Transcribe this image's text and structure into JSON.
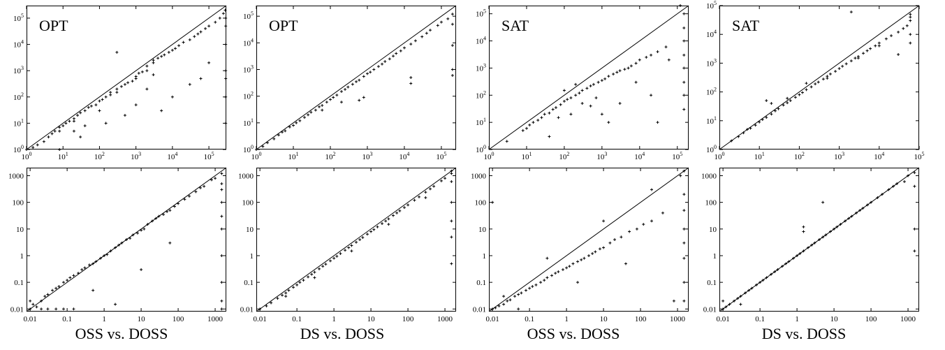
{
  "chart_data": [
    {
      "type": "scatter",
      "row": 1,
      "col": 1,
      "label": "OPT",
      "log_x": true,
      "log_y": true,
      "xlim": [
        1,
        300000
      ],
      "ylim": [
        1,
        300000
      ],
      "diagonal": true,
      "x_ticks": [
        "10^0",
        "10^1",
        "10^2",
        "10^3",
        "10^4",
        "10^5"
      ],
      "y_ticks": [
        "10^0",
        "10^1",
        "10^2",
        "10^3",
        "10^4",
        "10^5"
      ],
      "x": [
        1,
        1.5,
        2,
        3,
        4,
        5,
        6,
        8,
        8,
        10,
        12,
        15,
        20,
        20,
        25,
        30,
        40,
        50,
        60,
        80,
        100,
        120,
        150,
        200,
        200,
        300,
        300,
        400,
        500,
        600,
        800,
        1000,
        1000,
        1200,
        1500,
        2000,
        2000,
        3000,
        3000,
        4000,
        5000,
        6000,
        8000,
        10000,
        12000,
        15000,
        20000,
        30000,
        40000,
        50000,
        60000,
        80000,
        100000,
        150000,
        200000,
        250000,
        280000,
        290000,
        290000,
        290000,
        290000,
        290000,
        290000,
        290000,
        20,
        40,
        100,
        300,
        1000,
        2000,
        5000,
        10000,
        30000,
        60000,
        100000,
        8,
        30,
        150,
        500,
        3000
      ],
      "y": [
        1,
        1.2,
        1.5,
        2,
        3,
        4,
        5,
        5,
        7,
        8,
        10,
        12,
        15,
        12,
        20,
        25,
        30,
        40,
        45,
        50,
        70,
        80,
        100,
        120,
        150,
        150,
        200,
        250,
        300,
        350,
        400,
        500,
        600,
        800,
        900,
        1000,
        1500,
        2000,
        2500,
        3000,
        3500,
        4000,
        5000,
        6000,
        7000,
        9000,
        12000,
        15000,
        20000,
        25000,
        30000,
        40000,
        50000,
        70000,
        100000,
        150000,
        200000,
        100000,
        10000,
        1000,
        100,
        10,
        50000,
        500,
        5,
        8,
        30,
        5000,
        50,
        200,
        30,
        100,
        300,
        500,
        2000,
        1,
        3,
        10,
        20,
        700
      ]
    },
    {
      "type": "scatter",
      "row": 1,
      "col": 2,
      "label": "OPT",
      "log_x": true,
      "log_y": true,
      "xlim": [
        1,
        250000
      ],
      "ylim": [
        1,
        250000
      ],
      "diagonal": true,
      "x_ticks": [
        "10^0",
        "10^1",
        "10^2",
        "10^3",
        "10^4",
        "10^5"
      ],
      "y_ticks": [
        "10^0",
        "10^1",
        "10^2",
        "10^3",
        "10^4",
        "10^5"
      ],
      "x": [
        1,
        1.5,
        2,
        3,
        4,
        5,
        6,
        8,
        10,
        12,
        15,
        20,
        25,
        30,
        40,
        50,
        60,
        80,
        100,
        120,
        150,
        200,
        250,
        300,
        400,
        500,
        600,
        800,
        1000,
        1200,
        1500,
        2000,
        2500,
        3000,
        4000,
        5000,
        6000,
        8000,
        10000,
        15000,
        20000,
        30000,
        40000,
        50000,
        80000,
        100000,
        150000,
        200000,
        200000,
        200000,
        200000,
        200000,
        15000,
        15000,
        600,
        800,
        60,
        200
      ],
      "y": [
        1,
        1.3,
        1.8,
        2.5,
        3.5,
        4.5,
        5,
        7,
        8,
        10,
        12,
        16,
        20,
        25,
        30,
        40,
        45,
        60,
        75,
        90,
        110,
        150,
        180,
        220,
        280,
        350,
        400,
        550,
        700,
        800,
        1000,
        1300,
        1600,
        2000,
        2500,
        3200,
        4000,
        5000,
        6500,
        9000,
        12000,
        17000,
        23000,
        30000,
        45000,
        60000,
        80000,
        120000,
        50000,
        8000,
        1000,
        600,
        300,
        500,
        70,
        90,
        30,
        60
      ]
    },
    {
      "type": "scatter",
      "row": 1,
      "col": 3,
      "label": "SAT",
      "log_x": true,
      "log_y": true,
      "xlim": [
        1,
        200000
      ],
      "ylim": [
        1,
        200000
      ],
      "diagonal": true,
      "x_ticks": [
        "10^0",
        "10^1",
        "10^2",
        "10^3",
        "10^4",
        "10^5"
      ],
      "y_ticks": [
        "10^0",
        "10^1",
        "10^2",
        "10^3",
        "10^4",
        "10^5"
      ],
      "x": [
        3,
        8,
        10,
        12,
        15,
        20,
        25,
        30,
        40,
        50,
        60,
        80,
        100,
        120,
        150,
        200,
        250,
        300,
        400,
        500,
        600,
        800,
        1000,
        1200,
        1500,
        2000,
        2500,
        3000,
        4000,
        5000,
        6000,
        8000,
        10000,
        15000,
        20000,
        30000,
        50000,
        150000,
        150000,
        150000,
        150000,
        150000,
        150000,
        150000,
        150000,
        40,
        70,
        150,
        300,
        700,
        1500,
        3000,
        8000,
        20000,
        100,
        200,
        500,
        1000,
        30000,
        60000,
        120000
      ],
      "y": [
        2,
        5,
        6,
        8,
        10,
        12,
        15,
        20,
        22,
        30,
        35,
        45,
        60,
        70,
        80,
        100,
        120,
        150,
        180,
        220,
        250,
        300,
        350,
        400,
        500,
        600,
        700,
        800,
        900,
        1000,
        1200,
        1500,
        2000,
        2500,
        3000,
        4000,
        6000,
        100000,
        30000,
        10000,
        3000,
        1000,
        300,
        100,
        30,
        3,
        15,
        20,
        50,
        80,
        10,
        50,
        300,
        100,
        150,
        250,
        40,
        20,
        10,
        2000,
        200000
      ]
    },
    {
      "type": "scatter",
      "row": 1,
      "col": 4,
      "label": "SAT",
      "log_x": true,
      "log_y": true,
      "xlim": [
        1,
        100000
      ],
      "ylim": [
        1,
        100000
      ],
      "diagonal": true,
      "x_ticks": [
        "10^0",
        "10^1",
        "10^2",
        "10^3",
        "10^4",
        "10^5"
      ],
      "y_ticks": [
        "10^0",
        "10^1",
        "10^2",
        "10^3",
        "10^4",
        "10^5"
      ],
      "x": [
        2,
        3,
        4,
        5,
        6,
        8,
        10,
        12,
        15,
        20,
        25,
        30,
        40,
        50,
        60,
        80,
        100,
        120,
        150,
        200,
        250,
        300,
        400,
        500,
        600,
        800,
        1000,
        1200,
        1500,
        2000,
        2500,
        3000,
        4000,
        5000,
        6000,
        8000,
        10000,
        15000,
        20000,
        30000,
        40000,
        50000,
        60000,
        60000,
        60000,
        60000,
        60000,
        2000,
        20,
        50,
        150,
        500,
        3000,
        10000,
        30000,
        15
      ],
      "y": [
        2,
        2.8,
        3.8,
        5,
        5.5,
        7,
        9,
        11,
        13,
        17,
        22,
        26,
        35,
        42,
        50,
        65,
        80,
        95,
        120,
        150,
        190,
        220,
        280,
        350,
        420,
        520,
        650,
        780,
        950,
        1200,
        1500,
        1700,
        2200,
        2700,
        3200,
        4000,
        5000,
        7000,
        9000,
        12000,
        16000,
        20000,
        40000,
        10000,
        5000,
        50000,
        30000,
        60000,
        40,
        60,
        200,
        300,
        1500,
        4000,
        2000,
        50
      ]
    },
    {
      "type": "scatter",
      "row": 2,
      "col": 1,
      "label": "",
      "log_x": true,
      "log_y": true,
      "xlim": [
        0.008,
        2000
      ],
      "ylim": [
        0.008,
        2000
      ],
      "diagonal": true,
      "x_ticks": [
        "0.01",
        "0.1",
        "1",
        "10",
        "100",
        "1000"
      ],
      "y_ticks": [
        "0.01",
        "0.1",
        "1",
        "10",
        "100",
        "1000"
      ],
      "x": [
        0.01,
        0.01,
        0.012,
        0.015,
        0.02,
        0.025,
        0.03,
        0.04,
        0.05,
        0.06,
        0.08,
        0.1,
        0.12,
        0.15,
        0.2,
        0.25,
        0.3,
        0.4,
        0.5,
        0.6,
        0.8,
        1,
        1.2,
        1.5,
        2,
        2.5,
        3,
        4,
        5,
        6,
        8,
        10,
        12,
        15,
        20,
        25,
        30,
        40,
        50,
        60,
        80,
        100,
        150,
        200,
        300,
        400,
        500,
        800,
        1000,
        1500,
        1500,
        1500,
        1500,
        1500,
        1500,
        1500,
        1500,
        1500,
        0.02,
        0.03,
        0.05,
        0.08,
        0.15,
        0.5,
        2,
        10,
        60,
        1500
      ],
      "y": [
        0.01,
        0.02,
        0.015,
        0.012,
        0.02,
        0.03,
        0.035,
        0.05,
        0.06,
        0.07,
        0.1,
        0.12,
        0.15,
        0.18,
        0.22,
        0.3,
        0.35,
        0.45,
        0.5,
        0.6,
        0.8,
        1,
        1.1,
        1.5,
        2,
        2.5,
        3,
        4,
        4.5,
        6,
        7,
        9,
        10,
        15,
        20,
        25,
        30,
        35,
        45,
        50,
        70,
        90,
        130,
        170,
        250,
        350,
        400,
        700,
        800,
        1200,
        500,
        100,
        10,
        1,
        0.1,
        0.02,
        300,
        30,
        0.01,
        0.01,
        0.01,
        0.01,
        0.01,
        0.05,
        0.015,
        0.3,
        3,
        0.01
      ]
    },
    {
      "type": "scatter",
      "row": 2,
      "col": 2,
      "label": "",
      "log_x": true,
      "log_y": true,
      "xlim": [
        0.008,
        2000
      ],
      "ylim": [
        0.008,
        2000
      ],
      "diagonal": true,
      "x_ticks": [
        "0.01",
        "0.1",
        "1",
        "10",
        "100",
        "1000"
      ],
      "y_ticks": [
        "0.01",
        "0.1",
        "1",
        "10",
        "100",
        "1000"
      ],
      "x": [
        0.01,
        0.015,
        0.02,
        0.03,
        0.04,
        0.05,
        0.06,
        0.08,
        0.1,
        0.12,
        0.15,
        0.2,
        0.25,
        0.3,
        0.4,
        0.5,
        0.6,
        0.8,
        1,
        1.2,
        1.5,
        2,
        2.5,
        3,
        4,
        5,
        6,
        8,
        10,
        12,
        15,
        20,
        25,
        30,
        40,
        50,
        60,
        80,
        100,
        150,
        200,
        300,
        400,
        500,
        800,
        1000,
        1500,
        1500,
        1500,
        1500,
        1500,
        1500,
        1500,
        0.05,
        0.3,
        3,
        30,
        300
      ],
      "y": [
        0.01,
        0.013,
        0.017,
        0.025,
        0.033,
        0.04,
        0.05,
        0.065,
        0.08,
        0.1,
        0.12,
        0.16,
        0.2,
        0.24,
        0.32,
        0.4,
        0.48,
        0.64,
        0.8,
        0.95,
        1.2,
        1.6,
        2,
        2.4,
        3.2,
        4,
        4.8,
        6.4,
        8,
        9.5,
        12,
        16,
        20,
        24,
        32,
        40,
        48,
        64,
        80,
        120,
        160,
        240,
        320,
        400,
        640,
        800,
        1200,
        600,
        100,
        20,
        5,
        0.5,
        1500,
        0.03,
        0.15,
        1.5,
        15,
        150
      ]
    },
    {
      "type": "scatter",
      "row": 2,
      "col": 3,
      "label": "",
      "log_x": true,
      "log_y": true,
      "xlim": [
        0.008,
        2000
      ],
      "ylim": [
        0.008,
        2000
      ],
      "diagonal": true,
      "x_ticks": [
        "0.01",
        "0.1",
        "1",
        "10",
        "100",
        "1000"
      ],
      "y_ticks": [
        "0.01",
        "0.1",
        "1",
        "10",
        "100",
        "1000"
      ],
      "x": [
        0.01,
        0.012,
        0.015,
        0.02,
        0.025,
        0.03,
        0.04,
        0.05,
        0.06,
        0.08,
        0.1,
        0.12,
        0.15,
        0.2,
        0.25,
        0.3,
        0.4,
        0.5,
        0.6,
        0.8,
        1,
        1.2,
        1.5,
        2,
        2.5,
        3,
        4,
        5,
        6,
        8,
        10,
        15,
        20,
        30,
        50,
        80,
        120,
        200,
        400,
        1500,
        1500,
        1500,
        1500,
        1500,
        1500,
        1500,
        1500,
        0.01,
        0.02,
        0.05,
        0.3,
        2,
        10,
        40,
        200,
        800,
        1200
      ],
      "y": [
        0.01,
        0.011,
        0.013,
        0.015,
        0.02,
        0.022,
        0.03,
        0.035,
        0.04,
        0.05,
        0.06,
        0.07,
        0.08,
        0.1,
        0.12,
        0.15,
        0.18,
        0.22,
        0.25,
        0.3,
        0.35,
        0.4,
        0.5,
        0.6,
        0.7,
        0.8,
        1,
        1.2,
        1.4,
        1.8,
        2,
        3,
        4,
        5,
        8,
        10,
        15,
        20,
        40,
        1500,
        200,
        50,
        10,
        3,
        0.8,
        0.1,
        0.02,
        100,
        0.03,
        0.01,
        0.8,
        0.1,
        20,
        0.5,
        300,
        0.02,
        1000
      ]
    },
    {
      "type": "scatter",
      "row": 2,
      "col": 4,
      "label": "",
      "log_x": true,
      "log_y": true,
      "xlim": [
        0.008,
        2000
      ],
      "ylim": [
        0.008,
        2000
      ],
      "diagonal": true,
      "x_ticks": [
        "0.01",
        "0.1",
        "1",
        "10",
        "100",
        "1000"
      ],
      "y_ticks": [
        "0.01",
        "0.1",
        "1",
        "10",
        "100",
        "1000"
      ],
      "x": [
        0.01,
        0.012,
        0.015,
        0.02,
        0.025,
        0.03,
        0.04,
        0.05,
        0.06,
        0.08,
        0.1,
        0.12,
        0.15,
        0.2,
        0.25,
        0.3,
        0.4,
        0.5,
        0.6,
        0.8,
        1,
        1.2,
        1.5,
        2,
        2.5,
        3,
        4,
        5,
        6,
        8,
        10,
        12,
        15,
        20,
        25,
        30,
        40,
        50,
        60,
        80,
        100,
        150,
        200,
        300,
        400,
        500,
        800,
        1000,
        1500,
        1500,
        1500,
        1500,
        1.5,
        1.5,
        5,
        0.01,
        0.03
      ],
      "y": [
        0.01,
        0.012,
        0.015,
        0.02,
        0.025,
        0.03,
        0.04,
        0.05,
        0.06,
        0.08,
        0.1,
        0.12,
        0.15,
        0.2,
        0.25,
        0.3,
        0.4,
        0.5,
        0.6,
        0.8,
        1,
        1.2,
        1.5,
        2,
        2.5,
        3,
        4,
        5,
        6,
        8,
        10,
        12,
        15,
        20,
        25,
        30,
        40,
        50,
        60,
        80,
        100,
        150,
        200,
        300,
        400,
        500,
        600,
        1000,
        1300,
        10,
        1.5,
        400,
        12,
        8,
        100,
        0.02,
        0.015
      ]
    }
  ],
  "captions": [
    "OSS vs. DOSS",
    "DS vs. DOSS",
    "OSS vs. DOSS",
    "DS vs. DOSS"
  ]
}
